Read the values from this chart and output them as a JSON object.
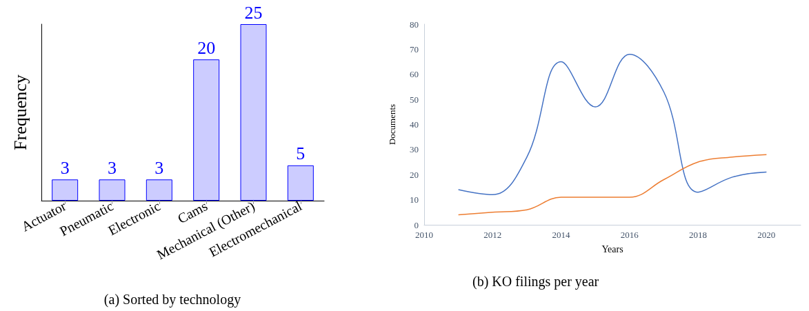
{
  "chart_data": [
    {
      "type": "bar",
      "title": "(a) Sorted by technology",
      "ylabel": "Frequency",
      "categories": [
        "Actuator",
        "Pneumatic",
        "Electronic",
        "Cams",
        "Mechanical (Other)",
        "Electromechanical"
      ],
      "values": [
        3,
        3,
        3,
        20,
        25,
        5
      ],
      "color": "#ccccff",
      "data_labels": true,
      "tick_labels": "x",
      "grid": false
    },
    {
      "type": "line",
      "title": "(b) KO filings per year",
      "xlabel": "Years",
      "ylabel": "Documents",
      "series": [
        {
          "color": "#4472c4",
          "x": [
            2011,
            2012,
            2013,
            2014,
            2015,
            2016,
            2017,
            2018,
            2019,
            2020
          ],
          "values": [
            14,
            12,
            27,
            65,
            47,
            68,
            53,
            13,
            19,
            21
          ]
        },
        {
          "color": "#ed7d31",
          "x": [
            2011,
            2012,
            2013,
            2014,
            2015,
            2016,
            2017,
            2018,
            2019,
            2020
          ],
          "values": [
            4,
            5,
            6,
            11,
            11,
            11,
            18,
            25,
            27,
            28
          ]
        }
      ],
      "xlim": [
        2010,
        2021
      ],
      "xticks": [
        2010,
        2012,
        2014,
        2016,
        2018,
        2020
      ],
      "ylim": [
        0,
        80
      ],
      "yticks": [
        0,
        10,
        20,
        30,
        40,
        50,
        60,
        70,
        80
      ],
      "grid": false,
      "marker": "none"
    }
  ]
}
